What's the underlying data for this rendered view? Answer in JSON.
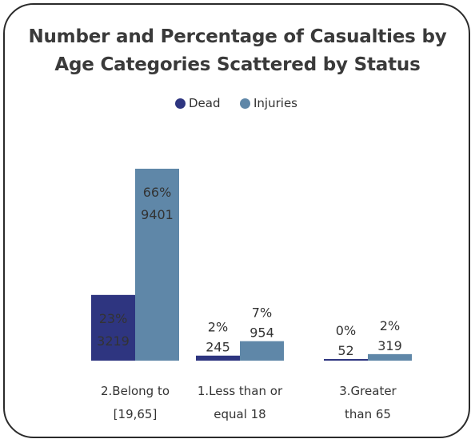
{
  "chart_data": {
    "type": "bar",
    "title_lines": [
      "Number and Percentage of Casualties by",
      "Age Categories Scattered by Status"
    ],
    "categories": [
      {
        "lines": [
          "2.Belong to",
          "[19,65]"
        ]
      },
      {
        "lines": [
          "1.Less than or",
          "equal 18"
        ]
      },
      {
        "lines": [
          "3.Greater",
          "than 65"
        ]
      }
    ],
    "series": [
      {
        "name": "Dead",
        "color": "#2e3580",
        "values": [
          3219,
          245,
          52
        ],
        "percents": [
          "23%",
          "2%",
          "0%"
        ]
      },
      {
        "name": "Injuries",
        "color": "#5f87a8",
        "values": [
          9401,
          954,
          319
        ],
        "percents": [
          "66%",
          "7%",
          "2%"
        ]
      }
    ],
    "legend_position": "top-center",
    "grid": false
  }
}
